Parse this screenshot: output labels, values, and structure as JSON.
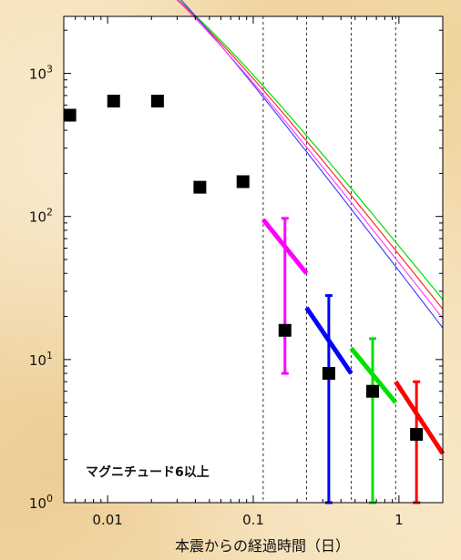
{
  "chart_data": {
    "type": "scatter",
    "title": "",
    "xlabel": "本震からの経過時間（日）",
    "ylabel": "",
    "x_scale": "log",
    "y_scale": "log",
    "xlim": [
      0.005,
      2
    ],
    "ylim": [
      1,
      2500
    ],
    "x_ticks": [
      {
        "value": 0.01,
        "label": "0.01"
      },
      {
        "value": 0.1,
        "label": "0.1"
      },
      {
        "value": 1,
        "label": "1"
      }
    ],
    "y_ticks": [
      {
        "value": 1,
        "base": "10",
        "exp": "0"
      },
      {
        "value": 10,
        "base": "10",
        "exp": "1"
      },
      {
        "value": 100,
        "base": "10",
        "exp": "2"
      },
      {
        "value": 1000,
        "base": "10",
        "exp": "3"
      }
    ],
    "grid": false,
    "vertical_reference_lines": [
      0.117,
      0.232,
      0.47,
      0.95
    ],
    "annotation": "マグニチュード6以上",
    "points": [
      {
        "x": 0.0055,
        "y": 510
      },
      {
        "x": 0.011,
        "y": 640
      },
      {
        "x": 0.022,
        "y": 640
      },
      {
        "x": 0.043,
        "y": 160
      },
      {
        "x": 0.085,
        "y": 175
      },
      {
        "x": 0.165,
        "y": 16,
        "err_low": 8,
        "err_high": 97,
        "color": "#ff00ff"
      },
      {
        "x": 0.33,
        "y": 8,
        "err_low": 1,
        "err_high": 28,
        "color": "#0000ff"
      },
      {
        "x": 0.66,
        "y": 6,
        "err_low": 1,
        "err_high": 14,
        "color": "#00e000"
      },
      {
        "x": 1.32,
        "y": 3,
        "err_low": 1,
        "err_high": 7,
        "color": "#ff0000"
      }
    ],
    "fit_curves": [
      {
        "color": "#00dd00",
        "K": 63,
        "c": 0.012,
        "p": 1.25
      },
      {
        "color": "#ff2a2a",
        "K": 55,
        "c": 0.011,
        "p": 1.28
      },
      {
        "color": "#4444ff",
        "K": 42,
        "c": 0.006,
        "p": 1.33
      },
      {
        "color": "#ff44ff",
        "K": 48,
        "c": 0.009,
        "p": 1.3
      }
    ],
    "forecast_segments": [
      {
        "color": "#ff00ff",
        "x": [
          0.117,
          0.232
        ],
        "y": [
          95,
          40
        ]
      },
      {
        "color": "#0000ff",
        "x": [
          0.232,
          0.47
        ],
        "y": [
          23,
          8
        ]
      },
      {
        "color": "#00e000",
        "x": [
          0.47,
          0.95
        ],
        "y": [
          12,
          5
        ]
      },
      {
        "color": "#ff0000",
        "x": [
          0.95,
          2.0
        ],
        "y": [
          7,
          2.2
        ]
      }
    ]
  }
}
